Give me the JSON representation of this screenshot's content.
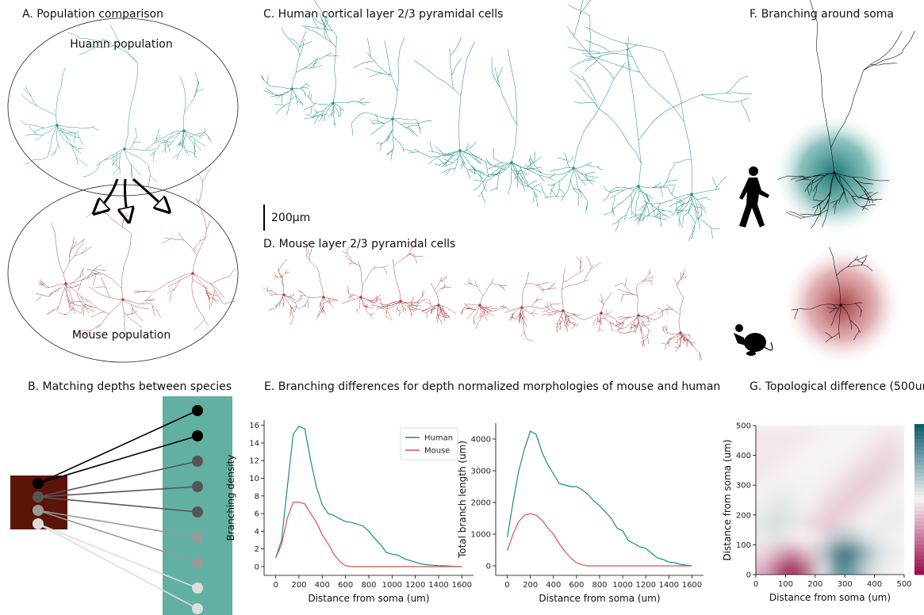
{
  "panels": {
    "a": {
      "title": "A. Population comparison",
      "human_label": "Huamn population",
      "mouse_label": "Mouse population"
    },
    "b": {
      "title": "B. Matching depths between species"
    },
    "c": {
      "title": "C. Human cortical layer 2/3 pyramidal cells",
      "scale_bar": "200µm"
    },
    "d": {
      "title": "D. Mouse layer 2/3 pyramidal cells"
    },
    "e": {
      "title": "E. Branching differences for depth normalized morphologies of mouse and human"
    },
    "f": {
      "title": "F. Branching around soma"
    },
    "g": {
      "title": "G. Topological difference (500um)"
    }
  },
  "chart_data": [
    {
      "type": "line",
      "x_label": "Distance from soma (um)",
      "y_label": "Branching density",
      "legend": "upper right",
      "x": [
        0,
        50,
        100,
        150,
        200,
        250,
        300,
        350,
        400,
        450,
        500,
        550,
        600,
        650,
        700,
        750,
        800,
        850,
        900,
        950,
        1000,
        1050,
        1100,
        1150,
        1200,
        1250,
        1300,
        1350,
        1400,
        1450,
        1500,
        1550,
        1600
      ],
      "xlim": [
        -100,
        1700
      ],
      "xticks": [
        0,
        200,
        400,
        600,
        800,
        1000,
        1200,
        1400,
        1600
      ],
      "ylim": [
        -1,
        16.6
      ],
      "yticks": [
        0,
        2,
        4,
        6,
        8,
        10,
        12,
        14,
        16
      ],
      "series": [
        {
          "name": "Human",
          "color": "#1a8a8a",
          "values": [
            1,
            3,
            9,
            15,
            15.9,
            15.6,
            12,
            9,
            7,
            6,
            5.8,
            5.4,
            5.1,
            5,
            4.8,
            4.6,
            4,
            3.2,
            2.5,
            1.6,
            1.4,
            1.3,
            0.9,
            0.7,
            0.5,
            0.3,
            0.2,
            0.15,
            0.1,
            0.1,
            0.05,
            0,
            0
          ]
        },
        {
          "name": "Mouse",
          "color": "#d9534f",
          "values": [
            1,
            2.5,
            5.5,
            7.3,
            7.3,
            7.1,
            6,
            5,
            3.6,
            2.6,
            1.4,
            0.6,
            0.1,
            0,
            0,
            0,
            0,
            0,
            0,
            0,
            0,
            0,
            0,
            0,
            0,
            0,
            0,
            0,
            0,
            0,
            0,
            0,
            0
          ]
        }
      ]
    },
    {
      "type": "line",
      "x_label": "Distance from soma (um)",
      "y_label": "Total branch length (um)",
      "x": [
        0,
        50,
        100,
        150,
        200,
        250,
        300,
        350,
        400,
        450,
        500,
        550,
        600,
        650,
        700,
        750,
        800,
        850,
        900,
        950,
        1000,
        1050,
        1100,
        1150,
        1200,
        1250,
        1300,
        1350,
        1400,
        1450,
        1500,
        1550,
        1600
      ],
      "xlim": [
        -100,
        1700
      ],
      "xticks": [
        0,
        200,
        400,
        600,
        800,
        1000,
        1200,
        1400,
        1600
      ],
      "ylim": [
        -300,
        4500
      ],
      "yticks": [
        0,
        1000,
        2000,
        3000,
        4000
      ],
      "series": [
        {
          "color": "#1a8a8a",
          "values": [
            900,
            2000,
            3000,
            3700,
            4250,
            4150,
            3600,
            3200,
            2900,
            2600,
            2550,
            2500,
            2500,
            2400,
            2250,
            2050,
            1900,
            1700,
            1500,
            1200,
            1100,
            800,
            700,
            600,
            550,
            400,
            250,
            200,
            120,
            100,
            50,
            20,
            0
          ]
        },
        {
          "color": "#d9534f",
          "values": [
            480,
            1000,
            1400,
            1600,
            1650,
            1600,
            1450,
            1200,
            1000,
            700,
            450,
            250,
            100,
            30,
            0,
            0,
            0,
            0,
            0,
            0,
            0,
            0,
            0,
            0,
            0,
            0,
            0,
            0,
            0,
            0,
            0,
            0,
            0
          ]
        }
      ]
    },
    {
      "type": "heatmap",
      "x_label": "Distance from soma (um)",
      "y_label": "Distance from soma (um)",
      "colorbar": true,
      "colors": [
        "#9c0d4e",
        "#f7f3f3",
        "#0e5e6f"
      ],
      "xlim": [
        0,
        500
      ],
      "ylim": [
        0,
        500
      ],
      "xticks": [
        0,
        100,
        200,
        300,
        400,
        500
      ],
      "yticks": [
        0,
        100,
        200,
        300,
        400,
        500
      ],
      "x": [
        25,
        75,
        125,
        175,
        225,
        275,
        325,
        375,
        425,
        475
      ],
      "y": [
        25,
        75,
        125,
        175,
        225,
        275,
        325,
        375,
        425,
        475
      ],
      "values": [
        [
          -0.3,
          -0.7,
          -1,
          -0.6,
          0.1,
          0.7,
          0.6,
          0.2,
          0.05,
          0
        ],
        [
          -0.1,
          -0.3,
          -0.5,
          -0.2,
          0.3,
          0.9,
          0.9,
          0.4,
          0.1,
          0.05
        ],
        [
          0.05,
          0.1,
          0,
          0,
          -0.1,
          0.3,
          0.3,
          0.1,
          0.05,
          0
        ],
        [
          0.1,
          0.15,
          0.1,
          -0.1,
          -0.2,
          -0.15,
          -0.05,
          0,
          0.05,
          0.05
        ],
        [
          0.05,
          0.1,
          0.05,
          0,
          -0.1,
          -0.2,
          -0.15,
          -0.05,
          0,
          0.05
        ],
        [
          0,
          0.05,
          0.05,
          0,
          -0.05,
          -0.1,
          -0.2,
          -0.15,
          -0.05,
          0
        ],
        [
          -0.05,
          0,
          0,
          0,
          0,
          -0.05,
          -0.1,
          -0.2,
          -0.15,
          -0.05
        ],
        [
          -0.05,
          -0.05,
          0,
          0,
          0,
          0,
          -0.05,
          -0.1,
          -0.15,
          -0.1
        ],
        [
          -0.05,
          -0.05,
          -0.05,
          0,
          0,
          0,
          0,
          -0.05,
          -0.1,
          -0.1
        ],
        [
          -0.05,
          -0.05,
          -0.05,
          -0.05,
          0,
          0,
          0,
          0,
          -0.05,
          -0.05
        ]
      ]
    }
  ]
}
